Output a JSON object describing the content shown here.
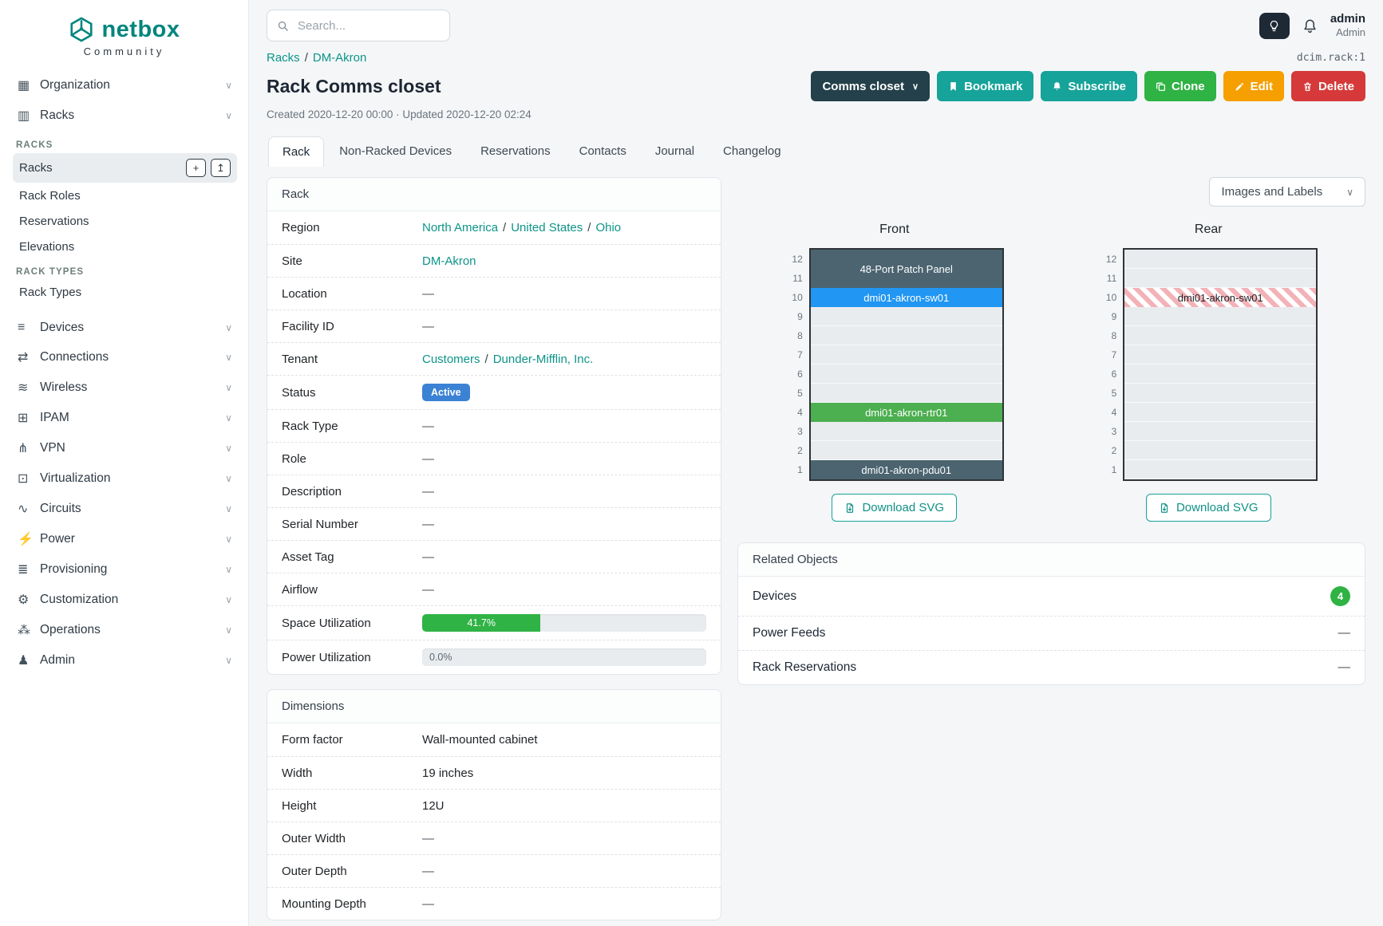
{
  "brand": {
    "name": "netbox",
    "subtitle": "Community"
  },
  "topbar": {
    "search_placeholder": "Search...",
    "user": {
      "name": "admin",
      "role": "Admin"
    }
  },
  "punct": {
    "slash": "/"
  },
  "icons": {
    "chevron_down": "∨",
    "caret": "∨",
    "plus": "+",
    "import": "↥"
  },
  "sidebar": {
    "items": [
      {
        "label": "Organization",
        "glyph": "▦"
      },
      {
        "label": "Racks",
        "glyph": "▥"
      },
      {
        "label": "Devices",
        "glyph": "≡"
      },
      {
        "label": "Connections",
        "glyph": "⇄"
      },
      {
        "label": "Wireless",
        "glyph": "≋"
      },
      {
        "label": "IPAM",
        "glyph": "⊞"
      },
      {
        "label": "VPN",
        "glyph": "⋔"
      },
      {
        "label": "Virtualization",
        "glyph": "⊡"
      },
      {
        "label": "Circuits",
        "glyph": "∿"
      },
      {
        "label": "Power",
        "glyph": "⚡"
      },
      {
        "label": "Provisioning",
        "glyph": "≣"
      },
      {
        "label": "Customization",
        "glyph": "⚙"
      },
      {
        "label": "Operations",
        "glyph": "⁂"
      },
      {
        "label": "Admin",
        "glyph": "♟"
      }
    ],
    "racks_group": {
      "sections": [
        {
          "header": "RACKS",
          "items": [
            {
              "label": "Racks",
              "active": true
            },
            {
              "label": "Rack Roles"
            },
            {
              "label": "Reservations"
            },
            {
              "label": "Elevations"
            }
          ]
        },
        {
          "header": "RACK TYPES",
          "items": [
            {
              "label": "Rack Types"
            }
          ]
        }
      ]
    }
  },
  "header": {
    "breadcrumb": [
      "Racks",
      "DM-Akron"
    ],
    "object_id": "dcim.rack:1",
    "title": "Rack Comms closet",
    "meta": "Created 2020-12-20 00:00 · Updated 2020-12-20 02:24",
    "actions": {
      "context": "Comms closet",
      "bookmark": "Bookmark",
      "subscribe": "Subscribe",
      "clone": "Clone",
      "edit": "Edit",
      "delete": "Delete"
    }
  },
  "tabs": [
    "Rack",
    "Non-Racked Devices",
    "Reservations",
    "Contacts",
    "Journal",
    "Changelog"
  ],
  "rack_panel": {
    "title": "Rack",
    "rows": [
      {
        "label": "Region",
        "links": [
          "North America",
          "United States",
          "Ohio"
        ]
      },
      {
        "label": "Site",
        "links": [
          "DM-Akron"
        ]
      },
      {
        "label": "Location",
        "value": "—"
      },
      {
        "label": "Facility ID",
        "value": "—"
      },
      {
        "label": "Tenant",
        "links": [
          "Customers",
          "Dunder-Mifflin, Inc."
        ]
      },
      {
        "label": "Status",
        "badge": "Active"
      },
      {
        "label": "Rack Type",
        "value": "—"
      },
      {
        "label": "Role",
        "value": "—"
      },
      {
        "label": "Description",
        "value": "—"
      },
      {
        "label": "Serial Number",
        "value": "—"
      },
      {
        "label": "Asset Tag",
        "value": "—"
      },
      {
        "label": "Airflow",
        "value": "—"
      },
      {
        "label": "Space Utilization",
        "progress": {
          "percent": 41.7,
          "label": "41.7%"
        }
      },
      {
        "label": "Power Utilization",
        "progress": {
          "percent": 0,
          "label": "0.0%"
        }
      }
    ]
  },
  "dimensions_panel": {
    "title": "Dimensions",
    "rows": [
      {
        "label": "Form factor",
        "value": "Wall-mounted cabinet"
      },
      {
        "label": "Width",
        "value": "19 inches"
      },
      {
        "label": "Height",
        "value": "12U"
      },
      {
        "label": "Outer Width",
        "value": "—"
      },
      {
        "label": "Outer Depth",
        "value": "—"
      },
      {
        "label": "Mounting Depth",
        "value": "—"
      }
    ]
  },
  "elevation": {
    "view_mode": "Images and Labels",
    "unit_labels": [
      "12",
      "11",
      "10",
      "9",
      "8",
      "7",
      "6",
      "5",
      "4",
      "3",
      "2",
      "1"
    ],
    "front": {
      "title": "Front",
      "units": [
        {
          "u": "12-11",
          "span": 2,
          "kind": "device",
          "label": "48-Port Patch Panel"
        },
        {
          "u": "10",
          "kind": "device",
          "label": "dmi01-akron-sw01"
        },
        {
          "u": "9",
          "kind": "empty"
        },
        {
          "u": "8",
          "kind": "empty"
        },
        {
          "u": "7",
          "kind": "empty"
        },
        {
          "u": "6",
          "kind": "empty"
        },
        {
          "u": "5",
          "kind": "empty"
        },
        {
          "u": "4",
          "kind": "device",
          "label": "dmi01-akron-rtr01"
        },
        {
          "u": "3",
          "kind": "empty"
        },
        {
          "u": "2",
          "kind": "empty"
        },
        {
          "u": "1",
          "kind": "device",
          "label": "dmi01-akron-pdu01"
        }
      ]
    },
    "rear": {
      "title": "Rear",
      "units": [
        {
          "u": "12",
          "kind": "empty"
        },
        {
          "u": "11",
          "kind": "empty"
        },
        {
          "u": "10",
          "kind": "occupied-rear",
          "label": "dmi01-akron-sw01"
        },
        {
          "u": "9",
          "kind": "empty"
        },
        {
          "u": "8",
          "kind": "empty"
        },
        {
          "u": "7",
          "kind": "empty"
        },
        {
          "u": "6",
          "kind": "empty"
        },
        {
          "u": "5",
          "kind": "empty"
        },
        {
          "u": "4",
          "kind": "empty"
        },
        {
          "u": "3",
          "kind": "empty"
        },
        {
          "u": "2",
          "kind": "empty"
        },
        {
          "u": "1",
          "kind": "empty"
        }
      ]
    },
    "download_label": "Download SVG"
  },
  "related_panel": {
    "title": "Related Objects",
    "rows": [
      {
        "label": "Devices",
        "count": "4"
      },
      {
        "label": "Power Feeds",
        "value": "—"
      },
      {
        "label": "Rack Reservations",
        "value": "—"
      }
    ]
  },
  "colors": {
    "brand_teal": "#00857e",
    "link_teal": "#0d9488",
    "button_teal": "#16a399",
    "button_dark": "#24404a",
    "button_green": "#2fb344",
    "button_yellow": "#f59f00",
    "button_red": "#d63939",
    "status_badge_blue": "#3b82d4",
    "progress_green": "#2fb344",
    "device_slate": "#4b6470",
    "device_blue": "#2196f3",
    "device_green": "#4caf50",
    "rear_occupied_stripe": "#f2b2b7"
  }
}
